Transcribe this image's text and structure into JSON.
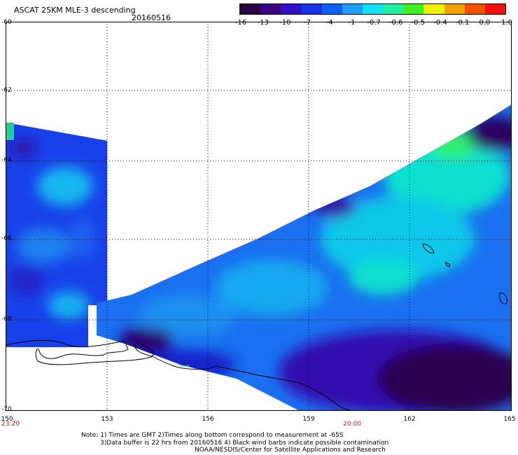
{
  "header": {
    "title": "ASCAT 25KM MLE-3 descending",
    "date": "20160516"
  },
  "colorbar": {
    "labels": [
      "-16",
      "-13",
      "-10",
      "-7",
      "-4",
      "-1",
      "-0.7",
      "-0.6",
      "-0.5",
      "-0.4",
      "-0.1",
      "0.0",
      "1.0"
    ],
    "colors": [
      "#2a0040",
      "#3a0580",
      "#3010c0",
      "#1830e6",
      "#1060f0",
      "#1aa0f8",
      "#10e0f0",
      "#20f0a0",
      "#40f020",
      "#f0f000",
      "#f0a000",
      "#f05000",
      "#f01010"
    ]
  },
  "axes": {
    "lat_labels": [
      "-60",
      "-62",
      "-64",
      "-66",
      "-68",
      "-70"
    ],
    "lon_labels": [
      "150",
      "153",
      "156",
      "159",
      "162",
      "165"
    ]
  },
  "times": [
    "23:20",
    "20:00"
  ],
  "notes": [
    "Note: 1) Times are GMT 2)Times along bottom correspond to measurement at -65S",
    "3)Data buffer is 22 hrs from 20160516 4) Black wind barbs indicate possible contamination",
    "NOAA/NESDIS/Center for Satellite Applications and Research"
  ]
}
